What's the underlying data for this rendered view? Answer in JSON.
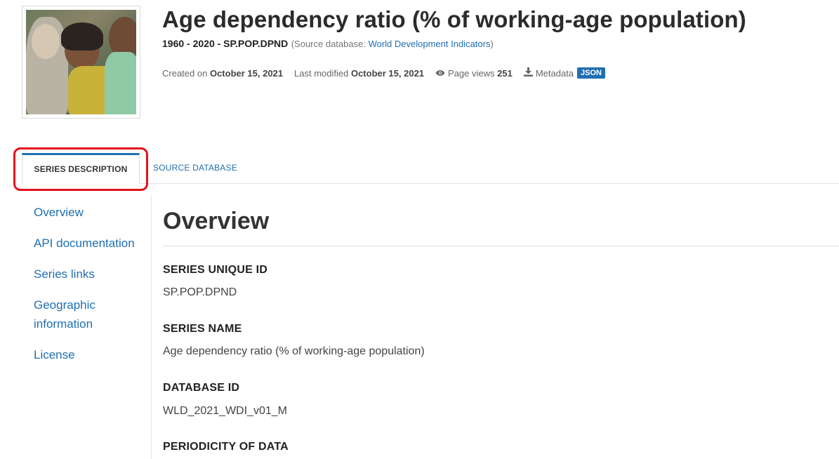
{
  "header": {
    "title": "Age dependency ratio (% of working-age population)",
    "subtitle_bold": "1960 - 2020 - SP.POP.DPND",
    "source_prefix": "(Source database: ",
    "source_link": "World Development Indicators",
    "source_suffix": ")",
    "created_label": "Created on",
    "created_value": "October 15, 2021",
    "modified_label": "Last modified",
    "modified_value": "October 15, 2021",
    "views_label": "Page views",
    "views_value": "251",
    "metadata_label": "Metadata",
    "metadata_badge": "JSON"
  },
  "tabs": [
    {
      "label": "SERIES DESCRIPTION",
      "active": true
    },
    {
      "label": "SOURCE DATABASE",
      "active": false
    }
  ],
  "sidenav": {
    "items": [
      {
        "label": "Overview"
      },
      {
        "label": "API documentation"
      },
      {
        "label": "Series links"
      },
      {
        "label": "Geographic information"
      },
      {
        "label": "License"
      }
    ]
  },
  "main": {
    "heading": "Overview",
    "fields": [
      {
        "label": "SERIES UNIQUE ID",
        "value": "SP.POP.DPND"
      },
      {
        "label": "SERIES NAME",
        "value": "Age dependency ratio (% of working-age population)"
      },
      {
        "label": "DATABASE ID",
        "value": "WLD_2021_WDI_v01_M"
      },
      {
        "label": "PERIODICITY OF DATA",
        "value": ""
      }
    ]
  },
  "icons": {
    "eye": "eye-icon",
    "download": "download-icon"
  },
  "colors": {
    "accent": "#1f6fb2",
    "highlight": "#e2121b"
  }
}
